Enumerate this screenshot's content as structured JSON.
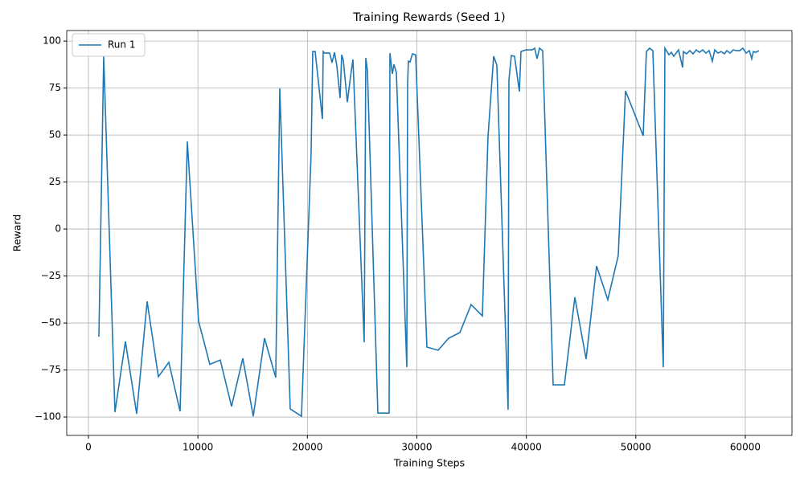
{
  "chart_data": {
    "type": "line",
    "title": "Training Rewards (Seed 1)",
    "x_label": "Training Steps",
    "y_label": "Reward",
    "x": [
      955,
      1395,
      2423,
      3378,
      4406,
      5361,
      6389,
      7344,
      8372,
      9033,
      10061,
      11089,
      12044,
      13072,
      14100,
      15055,
      16083,
      17111,
      17478,
      18433,
      19461,
      20342,
      20489,
      20710,
      21371,
      21444,
      21591,
      22032,
      22252,
      22473,
      22693,
      22987,
      23134,
      23281,
      23648,
      23942,
      24162,
      25189,
      25336,
      25483,
      26438,
      27466,
      27540,
      27760,
      27907,
      28127,
      29082,
      29155,
      29228,
      29375,
      29596,
      29889,
      30917,
      31945,
      32900,
      33928,
      34956,
      35984,
      36498,
      37012,
      37306,
      38334,
      38408,
      38628,
      38922,
      39363,
      39510,
      39950,
      40171,
      40538,
      40758,
      40979,
      41199,
      41493,
      42448,
      43476,
      44430,
      45459,
      46413,
      47441,
      48396,
      49057,
      50673,
      50966,
      51260,
      51554,
      52508,
      52655,
      53022,
      53242,
      53463,
      53683,
      53903,
      54271,
      54344,
      54638,
      54932,
      55226,
      55519,
      55813,
      56107,
      56401,
      56695,
      56989,
      57209,
      57503,
      57797,
      58091,
      58311,
      58605,
      58899,
      59193,
      59487,
      59780,
      60074,
      60368,
      60588,
      60735,
      60956,
      61250
    ],
    "series": [
      {
        "name": "Run 1",
        "color": "#1f77b4",
        "values": [
          -57.3,
          91.9,
          -97.4,
          -59.8,
          -98.3,
          -38.5,
          -78.6,
          -70.9,
          -97,
          46.6,
          -49,
          -72,
          -69.7,
          -94.4,
          -68.8,
          -99.6,
          -58.1,
          -79,
          74.8,
          -95.7,
          -99.6,
          40.6,
          94.4,
          94.4,
          58.5,
          94.4,
          93.6,
          93.6,
          88.5,
          94,
          86.8,
          69.7,
          92.7,
          89.7,
          67.5,
          81.2,
          90.2,
          -60.3,
          91,
          84.2,
          -97.9,
          -97.9,
          93.6,
          82.5,
          87.6,
          83.3,
          -73.5,
          77.4,
          89.3,
          88.9,
          93.2,
          92.7,
          -62.8,
          -64.5,
          -58.1,
          -55.1,
          -40.2,
          -46.2,
          49.1,
          91.9,
          87.2,
          -96.2,
          79.1,
          92.3,
          91.9,
          73.1,
          94.4,
          95.3,
          95.3,
          95.3,
          96.2,
          90.6,
          96.2,
          94.9,
          -82.9,
          -82.9,
          -36.3,
          -69.2,
          -19.7,
          -37.6,
          -14.1,
          73.5,
          49.6,
          94.4,
          96.2,
          94.9,
          -73.5,
          96.2,
          92.7,
          94,
          91.9,
          93.6,
          95.3,
          85.9,
          94.4,
          93.2,
          94.9,
          93.2,
          95.3,
          94,
          95.3,
          93.6,
          94.9,
          89.3,
          95.3,
          93.6,
          94.4,
          93.2,
          94.9,
          93.6,
          95.3,
          94.9,
          94.9,
          96.2,
          93.6,
          94.9,
          90.6,
          94.4,
          94,
          94.9
        ]
      }
    ],
    "xlim": [
      -1982,
      64260
    ],
    "ylim": [
      -109.8,
      105.6
    ],
    "xticks": [
      0,
      10000,
      20000,
      30000,
      40000,
      50000,
      60000
    ],
    "yticks": [
      {
        "value": -100,
        "label": "−100"
      },
      {
        "value": -75,
        "label": "−75"
      },
      {
        "value": -50,
        "label": "−50"
      },
      {
        "value": -25,
        "label": "−25"
      },
      0,
      25,
      50,
      75,
      100
    ],
    "grid": true,
    "legend": "upper left"
  }
}
